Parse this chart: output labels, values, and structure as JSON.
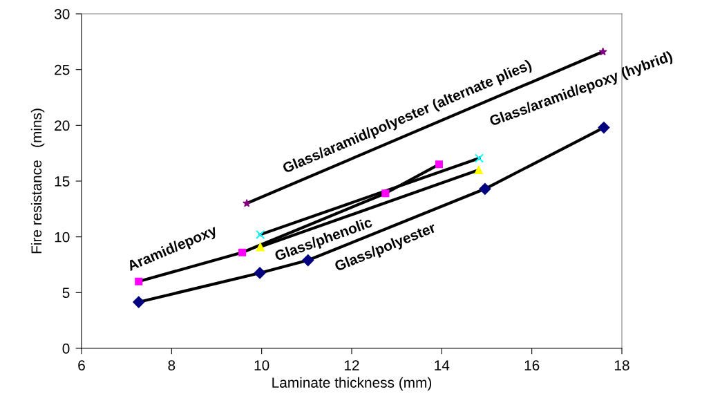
{
  "chart_data": {
    "type": "line",
    "xlabel": "Laminate thickness (mm)",
    "ylabel": "Fire resistance   (mins)",
    "xlim": [
      6,
      18
    ],
    "xticks": [
      6,
      8,
      10,
      12,
      14,
      16,
      18
    ],
    "ylim": [
      0,
      30
    ],
    "yticks": [
      0,
      5,
      10,
      15,
      20,
      25,
      30
    ],
    "grid": false,
    "legend": false,
    "series": [
      {
        "color": "#000080",
        "marker": "diamond",
        "x": [
          7.27,
          9.96,
          11.03,
          14.96,
          17.6
        ],
        "values": [
          4.15,
          6.76,
          7.9,
          14.3,
          19.8
        ]
      },
      {
        "color": "#ff00ff",
        "marker": "square",
        "x": [
          7.27,
          9.57,
          12.75,
          13.94
        ],
        "values": [
          6.0,
          8.6,
          13.9,
          16.5
        ]
      },
      {
        "color": "#ffff00",
        "marker": "triangle",
        "x": [
          9.97,
          14.82
        ],
        "values": [
          9.1,
          16.0
        ]
      },
      {
        "color": "#00ffff",
        "marker": "cross",
        "x": [
          9.97,
          14.83
        ],
        "values": [
          10.2,
          17.05
        ]
      },
      {
        "color": "#800080",
        "marker": "star",
        "x": [
          9.67,
          17.58
        ],
        "values": [
          13.0,
          26.6
        ]
      }
    ],
    "annotations": [
      "Glass/polyester",
      "Aramid/epoxy",
      "Glass/phenolic",
      "Glass/aramid/epoxy (hybrid)",
      "Glass/aramid/polyester (alternate plies)"
    ]
  }
}
